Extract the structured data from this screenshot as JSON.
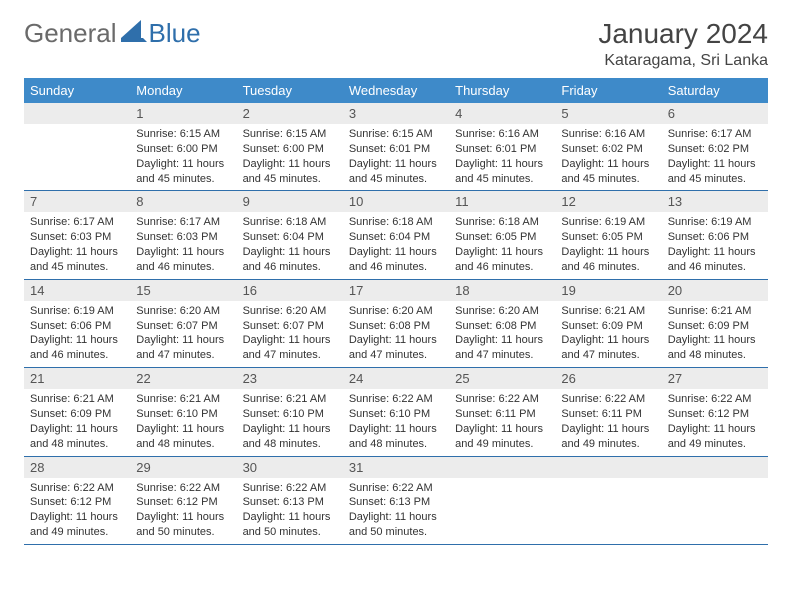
{
  "brand": {
    "part1": "General",
    "part2": "Blue"
  },
  "title": "January 2024",
  "location": "Kataragama, Sri Lanka",
  "colors": {
    "header_bg": "#3e8ac9",
    "header_text": "#ffffff",
    "daynum_bg": "#ececec",
    "rule": "#2f6fab",
    "brand_grey": "#6a6a6a",
    "brand_blue": "#2f6fab"
  },
  "day_names": [
    "Sunday",
    "Monday",
    "Tuesday",
    "Wednesday",
    "Thursday",
    "Friday",
    "Saturday"
  ],
  "start_offset": 1,
  "days": [
    {
      "n": "1",
      "sunrise": "6:15 AM",
      "sunset": "6:00 PM",
      "daylight": "11 hours and 45 minutes."
    },
    {
      "n": "2",
      "sunrise": "6:15 AM",
      "sunset": "6:00 PM",
      "daylight": "11 hours and 45 minutes."
    },
    {
      "n": "3",
      "sunrise": "6:15 AM",
      "sunset": "6:01 PM",
      "daylight": "11 hours and 45 minutes."
    },
    {
      "n": "4",
      "sunrise": "6:16 AM",
      "sunset": "6:01 PM",
      "daylight": "11 hours and 45 minutes."
    },
    {
      "n": "5",
      "sunrise": "6:16 AM",
      "sunset": "6:02 PM",
      "daylight": "11 hours and 45 minutes."
    },
    {
      "n": "6",
      "sunrise": "6:17 AM",
      "sunset": "6:02 PM",
      "daylight": "11 hours and 45 minutes."
    },
    {
      "n": "7",
      "sunrise": "6:17 AM",
      "sunset": "6:03 PM",
      "daylight": "11 hours and 45 minutes."
    },
    {
      "n": "8",
      "sunrise": "6:17 AM",
      "sunset": "6:03 PM",
      "daylight": "11 hours and 46 minutes."
    },
    {
      "n": "9",
      "sunrise": "6:18 AM",
      "sunset": "6:04 PM",
      "daylight": "11 hours and 46 minutes."
    },
    {
      "n": "10",
      "sunrise": "6:18 AM",
      "sunset": "6:04 PM",
      "daylight": "11 hours and 46 minutes."
    },
    {
      "n": "11",
      "sunrise": "6:18 AM",
      "sunset": "6:05 PM",
      "daylight": "11 hours and 46 minutes."
    },
    {
      "n": "12",
      "sunrise": "6:19 AM",
      "sunset": "6:05 PM",
      "daylight": "11 hours and 46 minutes."
    },
    {
      "n": "13",
      "sunrise": "6:19 AM",
      "sunset": "6:06 PM",
      "daylight": "11 hours and 46 minutes."
    },
    {
      "n": "14",
      "sunrise": "6:19 AM",
      "sunset": "6:06 PM",
      "daylight": "11 hours and 46 minutes."
    },
    {
      "n": "15",
      "sunrise": "6:20 AM",
      "sunset": "6:07 PM",
      "daylight": "11 hours and 47 minutes."
    },
    {
      "n": "16",
      "sunrise": "6:20 AM",
      "sunset": "6:07 PM",
      "daylight": "11 hours and 47 minutes."
    },
    {
      "n": "17",
      "sunrise": "6:20 AM",
      "sunset": "6:08 PM",
      "daylight": "11 hours and 47 minutes."
    },
    {
      "n": "18",
      "sunrise": "6:20 AM",
      "sunset": "6:08 PM",
      "daylight": "11 hours and 47 minutes."
    },
    {
      "n": "19",
      "sunrise": "6:21 AM",
      "sunset": "6:09 PM",
      "daylight": "11 hours and 47 minutes."
    },
    {
      "n": "20",
      "sunrise": "6:21 AM",
      "sunset": "6:09 PM",
      "daylight": "11 hours and 48 minutes."
    },
    {
      "n": "21",
      "sunrise": "6:21 AM",
      "sunset": "6:09 PM",
      "daylight": "11 hours and 48 minutes."
    },
    {
      "n": "22",
      "sunrise": "6:21 AM",
      "sunset": "6:10 PM",
      "daylight": "11 hours and 48 minutes."
    },
    {
      "n": "23",
      "sunrise": "6:21 AM",
      "sunset": "6:10 PM",
      "daylight": "11 hours and 48 minutes."
    },
    {
      "n": "24",
      "sunrise": "6:22 AM",
      "sunset": "6:10 PM",
      "daylight": "11 hours and 48 minutes."
    },
    {
      "n": "25",
      "sunrise": "6:22 AM",
      "sunset": "6:11 PM",
      "daylight": "11 hours and 49 minutes."
    },
    {
      "n": "26",
      "sunrise": "6:22 AM",
      "sunset": "6:11 PM",
      "daylight": "11 hours and 49 minutes."
    },
    {
      "n": "27",
      "sunrise": "6:22 AM",
      "sunset": "6:12 PM",
      "daylight": "11 hours and 49 minutes."
    },
    {
      "n": "28",
      "sunrise": "6:22 AM",
      "sunset": "6:12 PM",
      "daylight": "11 hours and 49 minutes."
    },
    {
      "n": "29",
      "sunrise": "6:22 AM",
      "sunset": "6:12 PM",
      "daylight": "11 hours and 50 minutes."
    },
    {
      "n": "30",
      "sunrise": "6:22 AM",
      "sunset": "6:13 PM",
      "daylight": "11 hours and 50 minutes."
    },
    {
      "n": "31",
      "sunrise": "6:22 AM",
      "sunset": "6:13 PM",
      "daylight": "11 hours and 50 minutes."
    }
  ]
}
